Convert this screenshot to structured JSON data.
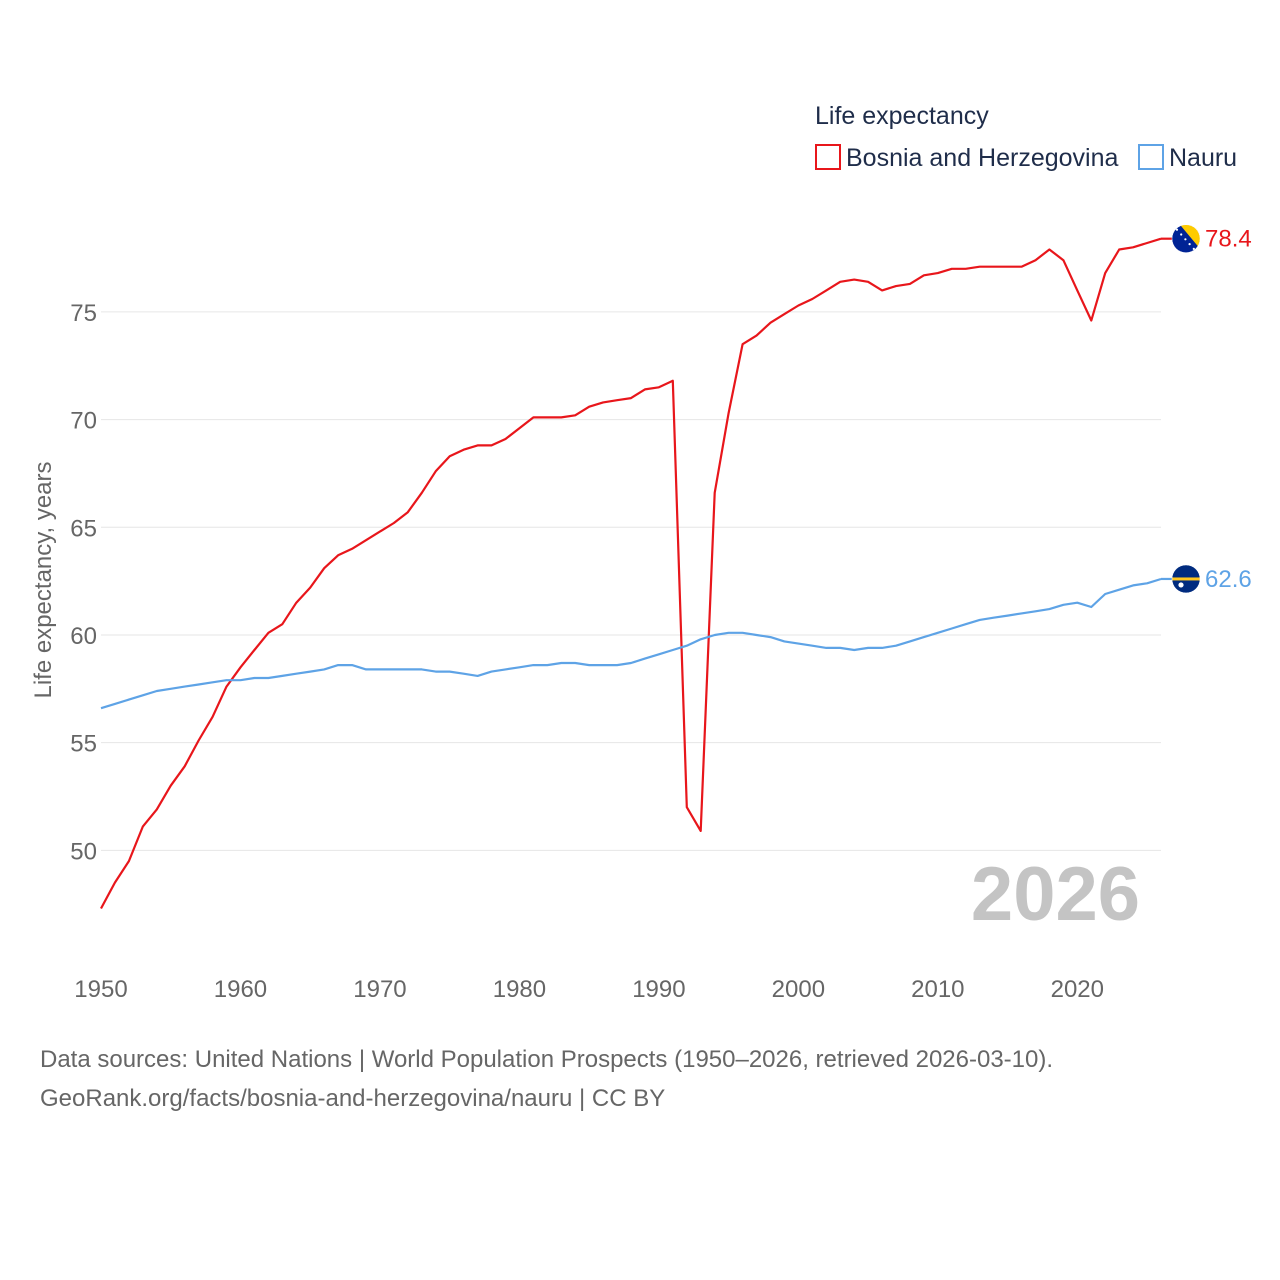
{
  "footer": {
    "sources": "Data sources: United Nations | World Population Prospects (1950–2026, retrieved 2026-03-10).",
    "link": "GeoRank.org/facts/bosnia-and-herzegovina/nauru | CC BY"
  },
  "chart_data": {
    "type": "line",
    "title": "",
    "legend_title": "Life expectancy",
    "legend_position": "top-right",
    "xlabel": "",
    "ylabel": "Life expectancy, years",
    "big_year_label": "2026",
    "xlim": [
      1950,
      2026
    ],
    "ylim": [
      45,
      79.5
    ],
    "x_ticks": [
      1950,
      1960,
      1970,
      1980,
      1990,
      2000,
      2010,
      2020
    ],
    "y_ticks": [
      50,
      55,
      60,
      65,
      70,
      75
    ],
    "grid": true,
    "x": [
      1950,
      1951,
      1952,
      1953,
      1954,
      1955,
      1956,
      1957,
      1958,
      1959,
      1960,
      1961,
      1962,
      1963,
      1964,
      1965,
      1966,
      1967,
      1968,
      1969,
      1970,
      1971,
      1972,
      1973,
      1974,
      1975,
      1976,
      1977,
      1978,
      1979,
      1980,
      1981,
      1982,
      1983,
      1984,
      1985,
      1986,
      1987,
      1988,
      1989,
      1990,
      1991,
      1992,
      1993,
      1994,
      1995,
      1996,
      1997,
      1998,
      1999,
      2000,
      2001,
      2002,
      2003,
      2004,
      2005,
      2006,
      2007,
      2008,
      2009,
      2010,
      2011,
      2012,
      2013,
      2014,
      2015,
      2016,
      2017,
      2018,
      2019,
      2020,
      2021,
      2022,
      2023,
      2024,
      2025,
      2026
    ],
    "series": [
      {
        "name": "Bosnia and Herzegovina",
        "color": "#e8161b",
        "end_label": "78.4",
        "flag_icon": "bosnia-flag-icon",
        "values": [
          47.3,
          48.5,
          49.5,
          51.1,
          51.9,
          53.0,
          53.9,
          55.1,
          56.2,
          57.6,
          58.5,
          59.3,
          60.1,
          60.5,
          61.5,
          62.2,
          63.1,
          63.7,
          64.0,
          64.4,
          64.8,
          65.2,
          65.7,
          66.6,
          67.6,
          68.3,
          68.6,
          68.8,
          68.8,
          69.1,
          69.6,
          70.1,
          70.1,
          70.1,
          70.2,
          70.6,
          70.8,
          70.9,
          71.0,
          71.4,
          71.5,
          71.8,
          52.0,
          50.9,
          66.6,
          70.3,
          73.5,
          73.9,
          74.5,
          74.9,
          75.3,
          75.6,
          76.0,
          76.4,
          76.5,
          76.4,
          76.0,
          76.2,
          76.3,
          76.7,
          76.8,
          77.0,
          77.0,
          77.1,
          77.1,
          77.1,
          77.1,
          77.4,
          77.9,
          77.4,
          76.0,
          74.6,
          76.8,
          77.9,
          78.0,
          78.2,
          78.4
        ]
      },
      {
        "name": "Nauru",
        "color": "#5ea3e6",
        "end_label": "62.6",
        "flag_icon": "nauru-flag-icon",
        "values": [
          56.6,
          56.8,
          57.0,
          57.2,
          57.4,
          57.5,
          57.6,
          57.7,
          57.8,
          57.9,
          57.9,
          58.0,
          58.0,
          58.1,
          58.2,
          58.3,
          58.4,
          58.6,
          58.6,
          58.4,
          58.4,
          58.4,
          58.4,
          58.4,
          58.3,
          58.3,
          58.2,
          58.1,
          58.3,
          58.4,
          58.5,
          58.6,
          58.6,
          58.7,
          58.7,
          58.6,
          58.6,
          58.6,
          58.7,
          58.9,
          59.1,
          59.3,
          59.5,
          59.8,
          60.0,
          60.1,
          60.1,
          60.0,
          59.9,
          59.7,
          59.6,
          59.5,
          59.4,
          59.4,
          59.3,
          59.4,
          59.4,
          59.5,
          59.7,
          59.9,
          60.1,
          60.3,
          60.5,
          60.7,
          60.8,
          60.9,
          61.0,
          61.1,
          61.2,
          61.4,
          61.5,
          61.3,
          61.9,
          62.1,
          62.3,
          62.4,
          62.6
        ]
      }
    ]
  }
}
